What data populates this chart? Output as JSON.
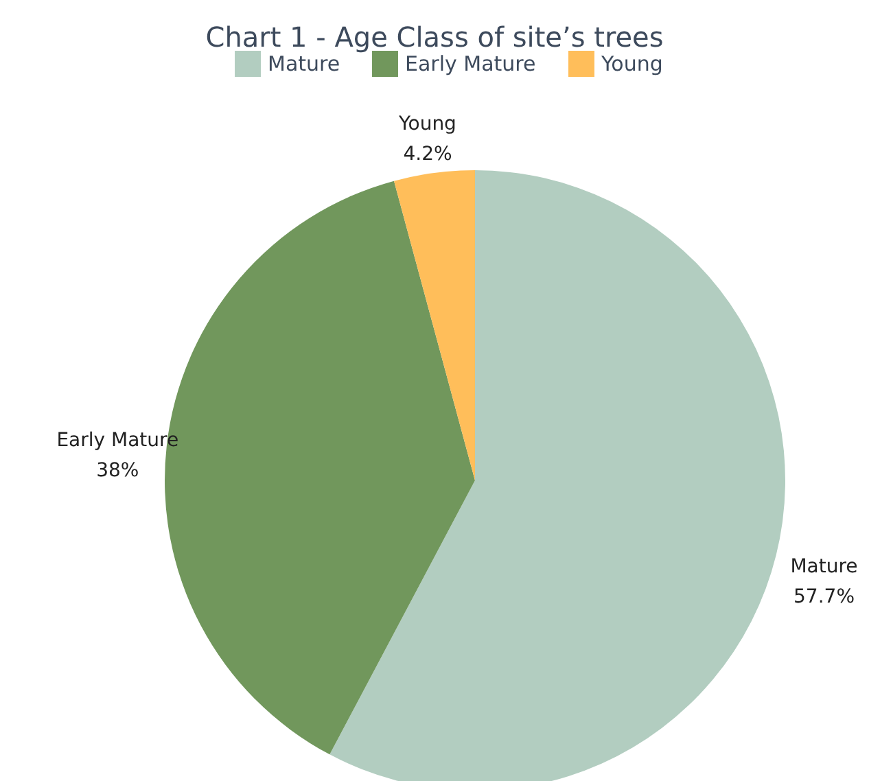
{
  "chart_data": {
    "type": "pie",
    "title": "Chart 1 - Age Class of site’s trees",
    "categories": [
      "Mature",
      "Early Mature",
      "Young"
    ],
    "values": [
      57.7,
      38,
      4.2
    ],
    "colors": [
      "#b2cdc0",
      "#71975c",
      "#ffbe5a"
    ],
    "value_labels": [
      "57.7%",
      "38%",
      "4.2%"
    ],
    "legend": "top"
  }
}
